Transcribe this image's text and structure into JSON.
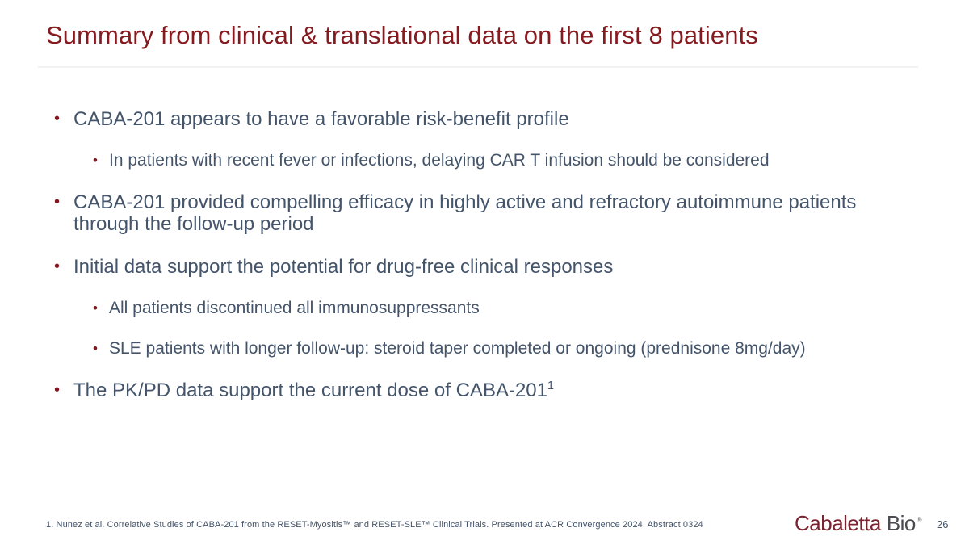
{
  "slide": {
    "title": "Summary from clinical & translational data on the first 8 patients",
    "bullets": [
      {
        "level": 1,
        "text": "CABA-201 appears to have a favorable risk-benefit profile"
      },
      {
        "level": 2,
        "text": "In patients with recent fever or infections, delaying CAR T infusion should be considered"
      },
      {
        "level": 1,
        "text": "CABA-201 provided compelling efficacy in highly active and refractory autoimmune patients through the follow-up period"
      },
      {
        "level": 1,
        "text": "Initial data support the potential for drug-free clinical responses"
      },
      {
        "level": 2,
        "text": "All patients discontinued all immunosuppressants"
      },
      {
        "level": 2,
        "text": "SLE patients with longer follow-up: steroid taper completed or ongoing (prednisone 8mg/day)"
      },
      {
        "level": 1,
        "text": "The PK/PD data support the current dose of CABA-201",
        "superscript": "1"
      }
    ],
    "footnote": "1. Nunez et al. Correlative Studies of CABA-201 from the RESET-Myositis™ and RESET-SLE™ Clinical Trials. Presented at ACR Convergence 2024. Abstract 0324",
    "logo": {
      "brand": "Cabaletta",
      "suffix": "Bio",
      "registered_mark": "®"
    },
    "page_number": "26",
    "colors": {
      "title": "#851A1F",
      "body_text": "#44546A",
      "bullet_marker": "#7F1820",
      "logo_brand": "#7A2430",
      "logo_suffix": "#4A4A50",
      "divider": "#F2F2F2",
      "background": "#FFFFFF"
    }
  }
}
